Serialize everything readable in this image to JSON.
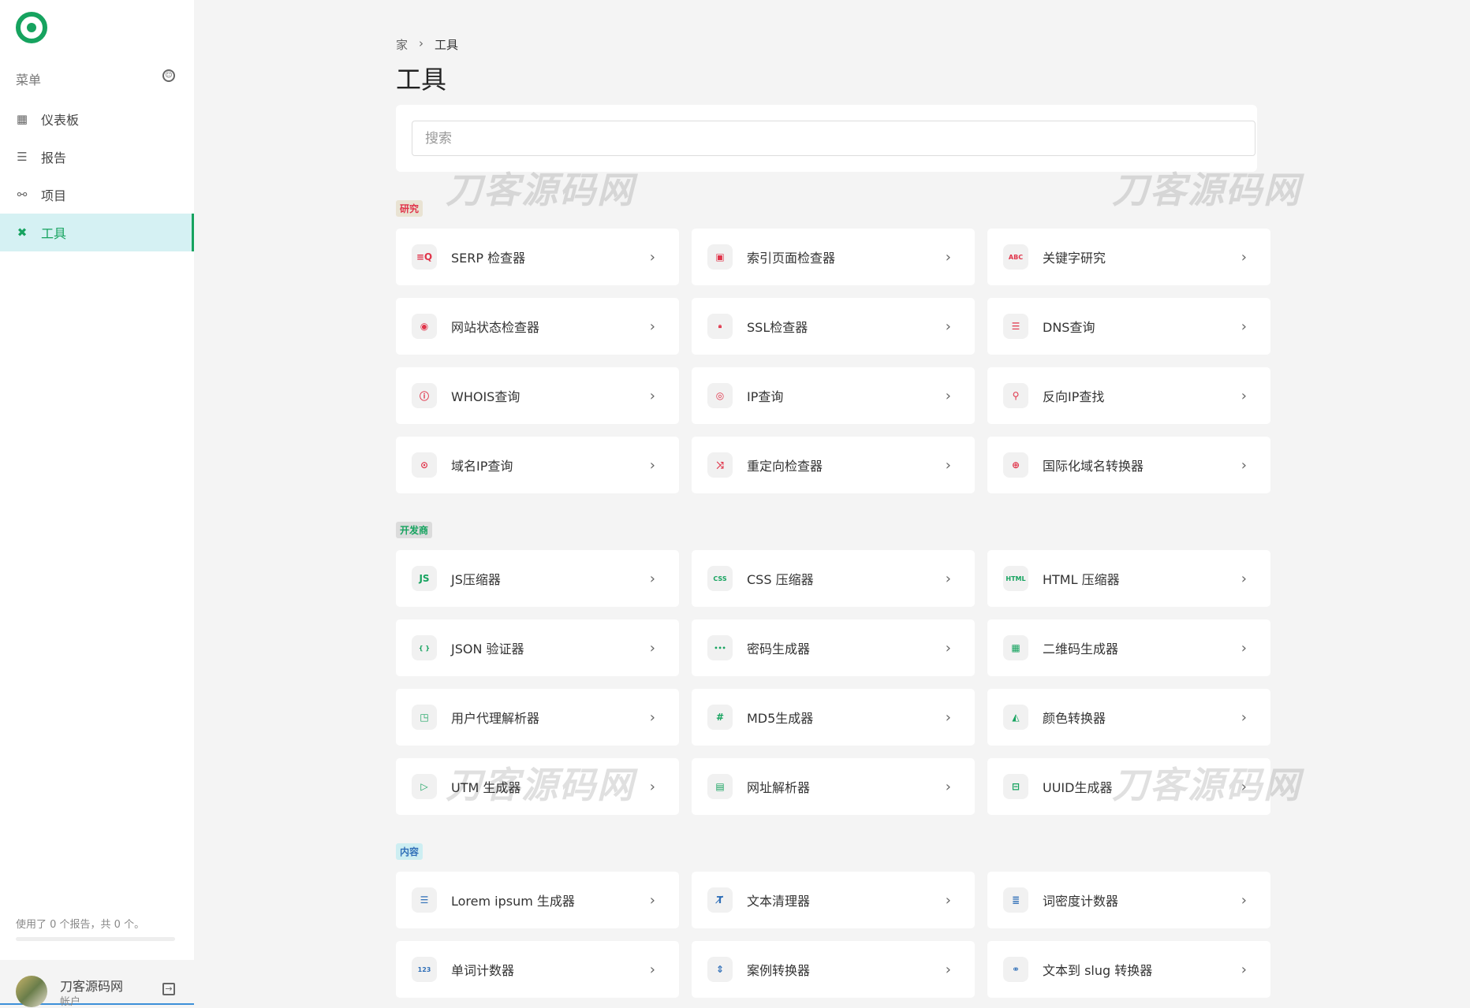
{
  "sidebar": {
    "menu_label": "菜单",
    "items": [
      {
        "label": "仪表板",
        "icon": "grid-icon",
        "glyph": "▦"
      },
      {
        "label": "报告",
        "icon": "list-icon",
        "glyph": "☰"
      },
      {
        "label": "项目",
        "icon": "nodes-icon",
        "glyph": "⚯"
      },
      {
        "label": "工具",
        "icon": "tools-icon",
        "glyph": "✖",
        "active": true
      }
    ],
    "usage": "使用了 0 个报告，共 0 个。",
    "usage_progress": 0,
    "account": {
      "name": "刀客源码网",
      "sub": "帐户"
    }
  },
  "breadcrumb": {
    "home": "家",
    "sep": "›",
    "current": "工具"
  },
  "page_title": "工具",
  "search": {
    "placeholder": "搜索",
    "value": ""
  },
  "watermark": "刀客源码网",
  "colors": {
    "accent": "#16a35f",
    "research": "#e0344a",
    "developer": "#16a35f",
    "content": "#3b8fd8"
  },
  "sections": [
    {
      "label": "研究",
      "color": "#e0344a",
      "bg": "#e9e3d3",
      "tools": [
        {
          "label": "SERP 检查器",
          "icon": "serp-search-icon",
          "glyph": "≡Q"
        },
        {
          "label": "索引页面检查器",
          "icon": "page-search-icon",
          "glyph": "▣"
        },
        {
          "label": "关键字研究",
          "icon": "abc-icon",
          "glyph": "ABC"
        },
        {
          "label": "网站状态检查器",
          "icon": "signal-icon",
          "glyph": "◉"
        },
        {
          "label": "SSL检查器",
          "icon": "lock-icon",
          "glyph": "🔒︎"
        },
        {
          "label": "DNS查询",
          "icon": "server-icon",
          "glyph": "☰"
        },
        {
          "label": "WHOIS查询",
          "icon": "info-icon",
          "glyph": "ⓘ"
        },
        {
          "label": "IP查询",
          "icon": "ip-search-icon",
          "glyph": "◎"
        },
        {
          "label": "反向IP查找",
          "icon": "search-icon",
          "glyph": "⚲"
        },
        {
          "label": "域名IP查询",
          "icon": "target-icon",
          "glyph": "⊙"
        },
        {
          "label": "重定向检查器",
          "icon": "shuffle-icon",
          "glyph": "⤨"
        },
        {
          "label": "国际化域名转换器",
          "icon": "globe-icon",
          "glyph": "⊕"
        }
      ]
    },
    {
      "label": "开发商",
      "color": "#16a35f",
      "bg": "#dcdcdc",
      "tools": [
        {
          "label": "JS压缩器",
          "icon": "js-icon",
          "glyph": "JS"
        },
        {
          "label": "CSS 压缩器",
          "icon": "css-icon",
          "glyph": "CSS"
        },
        {
          "label": "HTML 压缩器",
          "icon": "html-icon",
          "glyph": "HTML"
        },
        {
          "label": "JSON 验证器",
          "icon": "braces-icon",
          "glyph": "{ }"
        },
        {
          "label": "密码生成器",
          "icon": "password-icon",
          "glyph": "•••"
        },
        {
          "label": "二维码生成器",
          "icon": "qr-code-icon",
          "glyph": "▦"
        },
        {
          "label": "用户代理解析器",
          "icon": "window-icon",
          "glyph": "◳"
        },
        {
          "label": "MD5生成器",
          "icon": "hash-icon",
          "glyph": "#"
        },
        {
          "label": "颜色转换器",
          "icon": "palette-icon",
          "glyph": "◭"
        },
        {
          "label": "UTM 生成器",
          "icon": "tag-icon",
          "glyph": "▷"
        },
        {
          "label": "网址解析器",
          "icon": "link-parse-icon",
          "glyph": "▤"
        },
        {
          "label": "UUID生成器",
          "icon": "id-card-icon",
          "glyph": "⊟"
        }
      ]
    },
    {
      "label": "内容",
      "color": "#2f6fb8",
      "bg": "#cdeef2",
      "tools": [
        {
          "label": "Lorem ipsum 生成器",
          "icon": "text-lines-icon",
          "glyph": "☰"
        },
        {
          "label": "文本清理器",
          "icon": "clear-format-icon",
          "glyph": "T̸"
        },
        {
          "label": "词密度计数器",
          "icon": "density-icon",
          "glyph": "≣"
        },
        {
          "label": "单词计数器",
          "icon": "counter-icon",
          "glyph": "123"
        },
        {
          "label": "案例转换器",
          "icon": "case-icon",
          "glyph": "⇕"
        },
        {
          "label": "文本到 slug 转换器",
          "icon": "link-icon",
          "glyph": "⚭"
        }
      ]
    }
  ]
}
